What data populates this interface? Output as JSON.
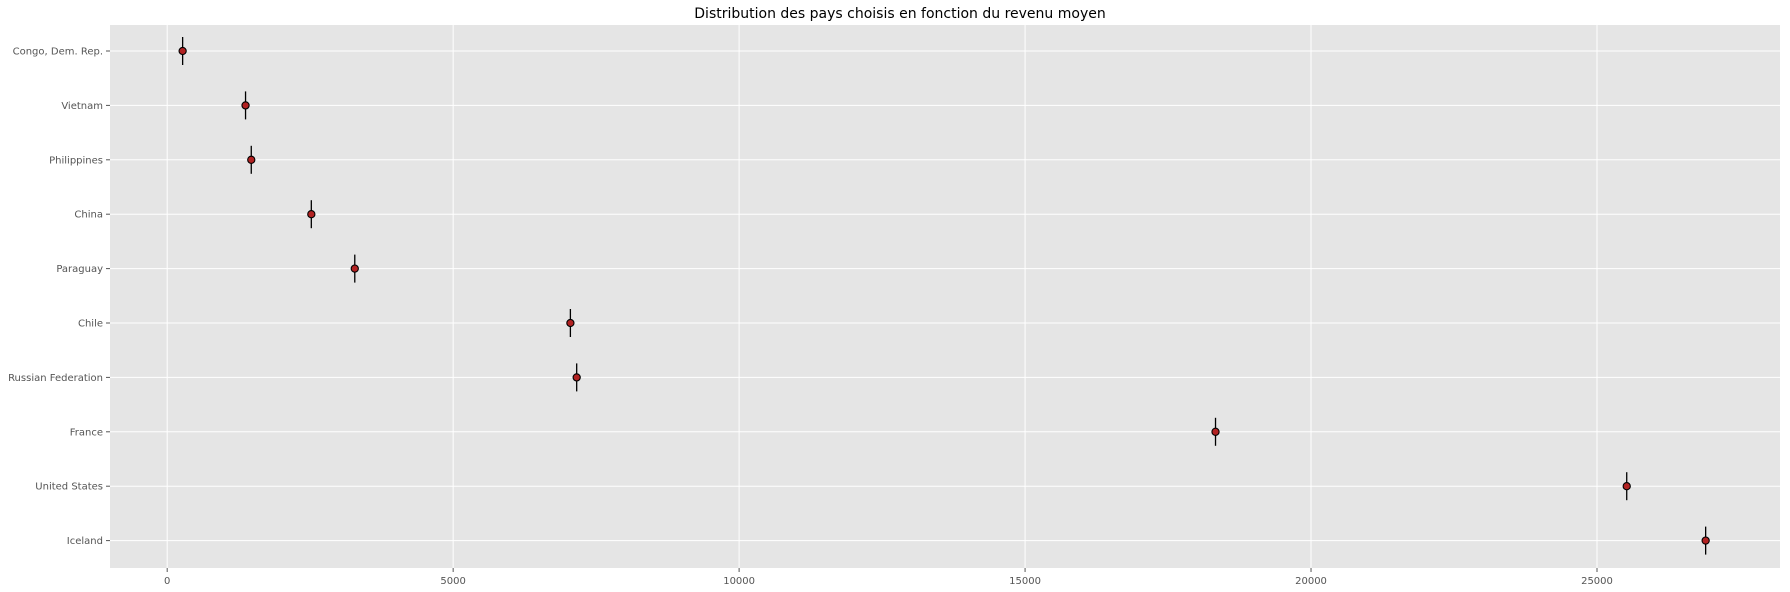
{
  "chart_data": {
    "type": "scatter",
    "title": "Distribution des pays choisis en fonction du revenu moyen",
    "xlabel": "",
    "ylabel": "",
    "xlim": [
      -1000,
      28200
    ],
    "xticks": [
      0,
      5000,
      10000,
      15000,
      20000,
      25000
    ],
    "grid": true,
    "categories": [
      "Congo, Dem. Rep.",
      "Vietnam",
      "Philippines",
      "China",
      "Paraguay",
      "Chile",
      "Russian Federation",
      "France",
      "United States",
      "Iceland"
    ],
    "series": [
      {
        "values": [
          270,
          1370,
          1470,
          2520,
          3280,
          7050,
          7160,
          18330,
          25520,
          26900
        ],
        "marker_color": "#b22222",
        "marker_edge_color": "#000000",
        "errorbar_color": "#000000"
      }
    ]
  }
}
